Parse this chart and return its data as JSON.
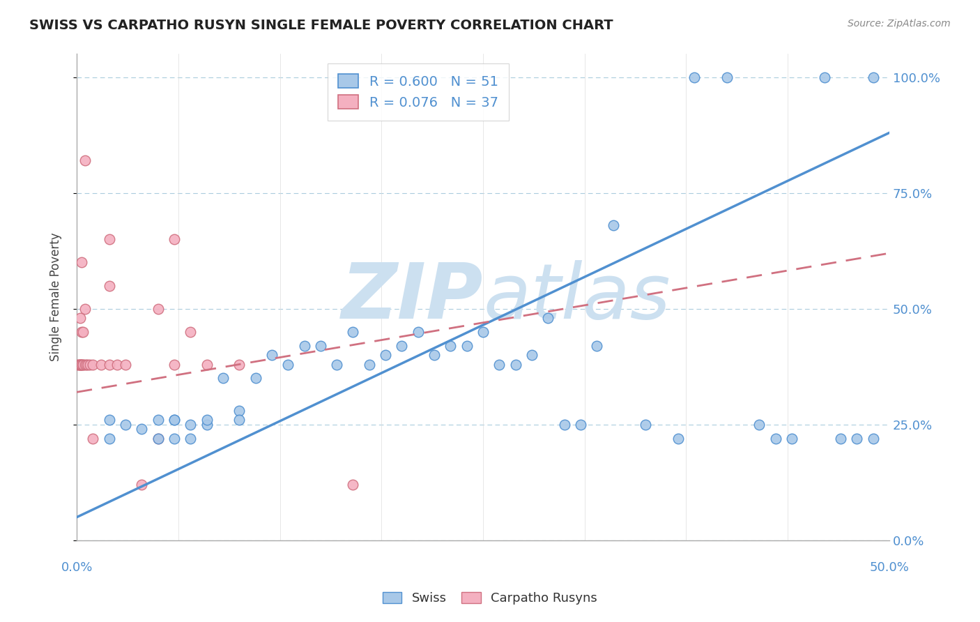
{
  "title": "SWISS VS CARPATHO RUSYN SINGLE FEMALE POVERTY CORRELATION CHART",
  "source": "Source: ZipAtlas.com",
  "ylabel": "Single Female Poverty",
  "yticks": [
    "0.0%",
    "25.0%",
    "50.0%",
    "75.0%",
    "100.0%"
  ],
  "ytick_vals": [
    0.0,
    0.25,
    0.5,
    0.75,
    1.0
  ],
  "xlim": [
    0.0,
    0.5
  ],
  "ylim": [
    0.0,
    1.05
  ],
  "legend_labels": [
    "Swiss",
    "Carpatho Rusyns"
  ],
  "R_swiss": 0.6,
  "R_rusyn": 0.076,
  "N_swiss": 51,
  "N_rusyn": 37,
  "color_swiss": "#a8c8e8",
  "color_rusyn": "#f4b0c0",
  "color_swiss_line": "#5090d0",
  "color_rusyn_line": "#d07080",
  "watermark_color": "#cce0f0",
  "swiss_x": [
    0.02,
    0.02,
    0.03,
    0.04,
    0.05,
    0.05,
    0.06,
    0.06,
    0.06,
    0.07,
    0.07,
    0.08,
    0.08,
    0.09,
    0.1,
    0.1,
    0.11,
    0.12,
    0.13,
    0.14,
    0.15,
    0.16,
    0.17,
    0.18,
    0.19,
    0.2,
    0.21,
    0.22,
    0.23,
    0.24,
    0.25,
    0.26,
    0.27,
    0.28,
    0.29,
    0.3,
    0.31,
    0.32,
    0.33,
    0.35,
    0.37,
    0.38,
    0.4,
    0.42,
    0.43,
    0.44,
    0.46,
    0.47,
    0.48,
    0.49,
    0.49
  ],
  "swiss_y": [
    0.26,
    0.22,
    0.25,
    0.24,
    0.22,
    0.26,
    0.26,
    0.26,
    0.22,
    0.25,
    0.22,
    0.25,
    0.26,
    0.35,
    0.28,
    0.26,
    0.35,
    0.4,
    0.38,
    0.42,
    0.42,
    0.38,
    0.45,
    0.38,
    0.4,
    0.42,
    0.45,
    0.4,
    0.42,
    0.42,
    0.45,
    0.38,
    0.38,
    0.4,
    0.48,
    0.25,
    0.25,
    0.42,
    0.68,
    0.25,
    0.22,
    1.0,
    1.0,
    0.25,
    0.22,
    0.22,
    1.0,
    0.22,
    0.22,
    1.0,
    0.22
  ],
  "rusyn_x": [
    0.001,
    0.001,
    0.002,
    0.002,
    0.002,
    0.002,
    0.003,
    0.003,
    0.003,
    0.004,
    0.004,
    0.004,
    0.005,
    0.005,
    0.006,
    0.007,
    0.008,
    0.01,
    0.01,
    0.015,
    0.02,
    0.02,
    0.02,
    0.025,
    0.03,
    0.04,
    0.05,
    0.05,
    0.06,
    0.06,
    0.07,
    0.08,
    0.1,
    0.17,
    0.005,
    0.003,
    0.002
  ],
  "rusyn_y": [
    0.38,
    0.38,
    0.38,
    0.38,
    0.38,
    0.38,
    0.38,
    0.38,
    0.45,
    0.38,
    0.45,
    0.38,
    0.38,
    0.5,
    0.38,
    0.38,
    0.38,
    0.38,
    0.22,
    0.38,
    0.65,
    0.55,
    0.38,
    0.38,
    0.38,
    0.12,
    0.5,
    0.22,
    0.65,
    0.38,
    0.45,
    0.38,
    0.38,
    0.12,
    0.82,
    0.6,
    0.48
  ],
  "swiss_line_x0": 0.0,
  "swiss_line_x1": 0.5,
  "swiss_line_y0": 0.05,
  "swiss_line_y1": 0.88,
  "rusyn_line_x0": 0.0,
  "rusyn_line_x1": 0.5,
  "rusyn_line_y0": 0.32,
  "rusyn_line_y1": 0.62
}
